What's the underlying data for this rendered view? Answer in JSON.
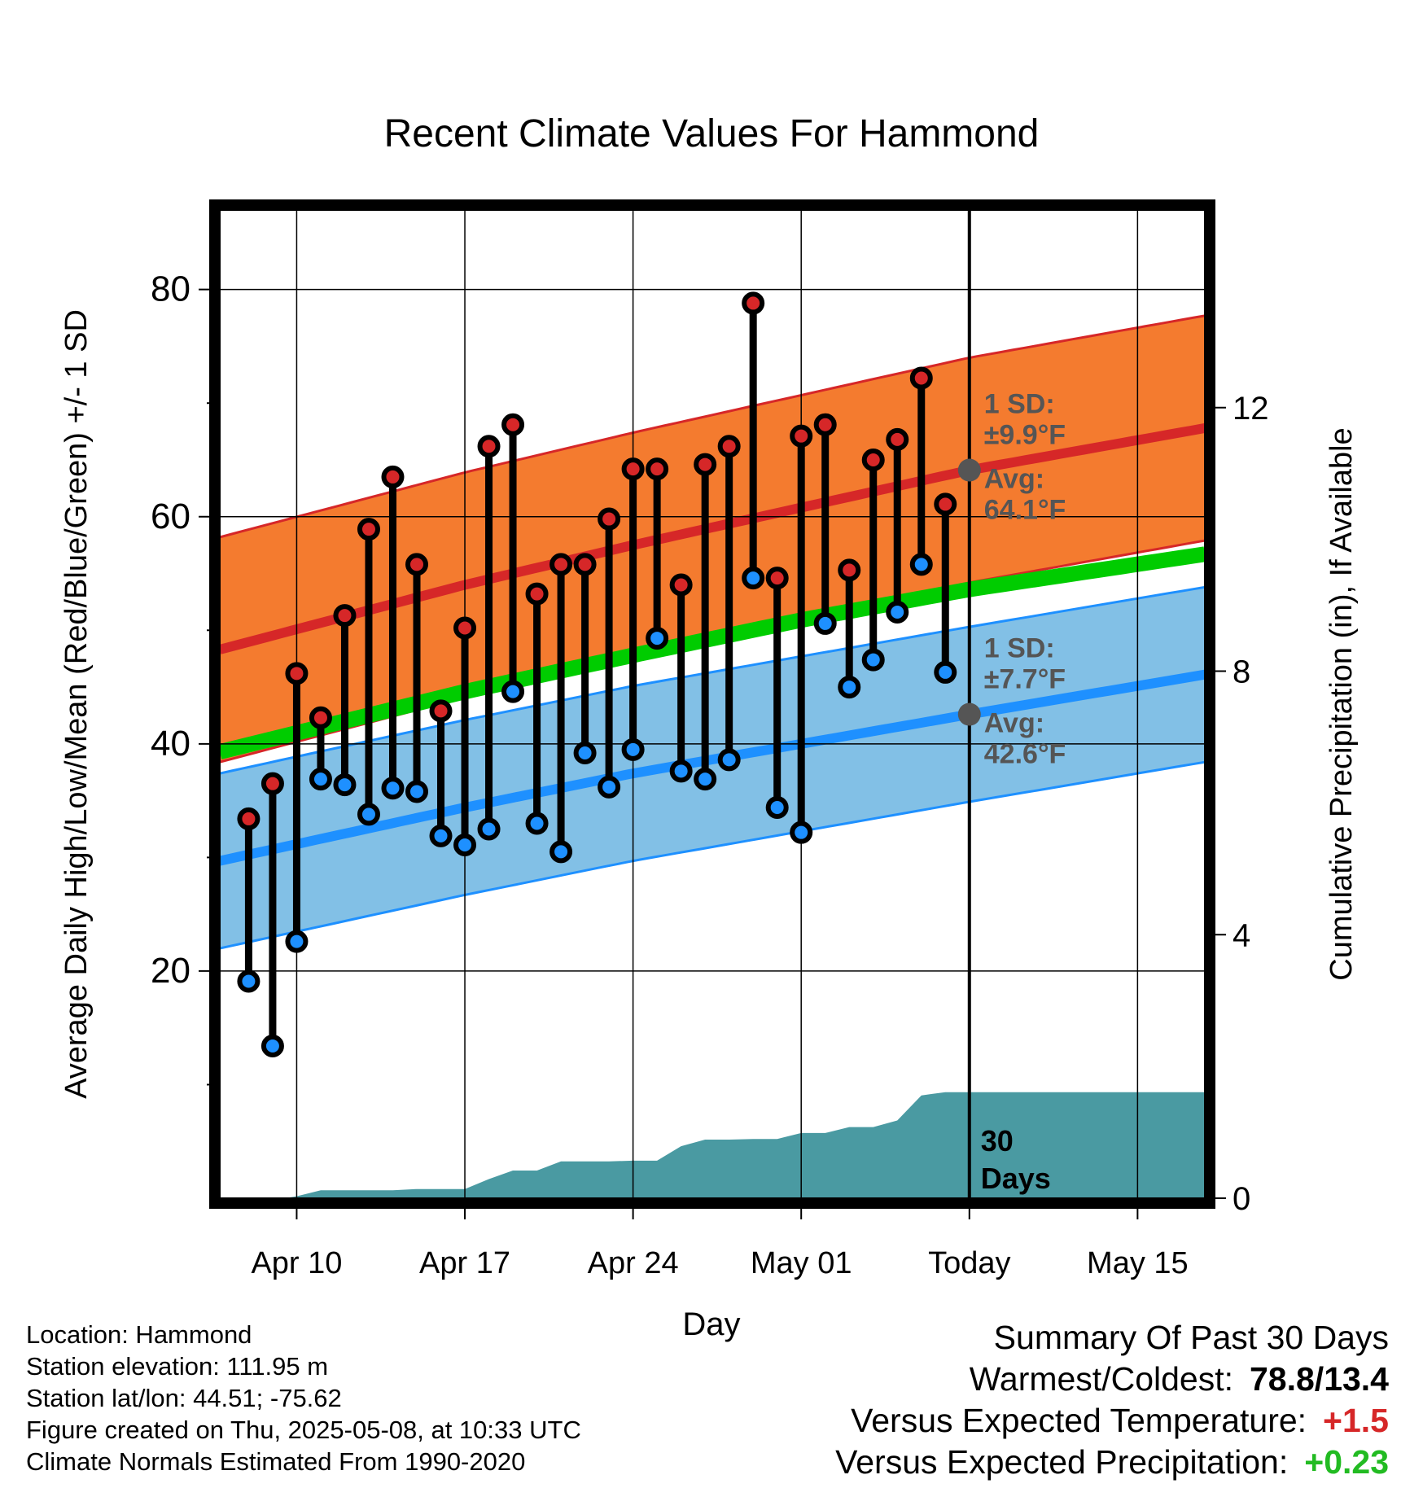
{
  "chart_data": {
    "type": "line",
    "title": "Recent Climate Values For Hammond",
    "xlabel": "Day",
    "ylabel": "Average Daily High/Low/Mean (Red/Blue/Green) +/- 1 SD",
    "y2label": "Cumulative Precipitation (in), If Available",
    "x_tick_labels": [
      "Apr 10",
      "Apr 17",
      "Apr 24",
      "May 01",
      "Today",
      "May 15"
    ],
    "x_tick_days": [
      10,
      17,
      24,
      31,
      38,
      45
    ],
    "x_range_days": [
      6.8,
      47.8
    ],
    "today_day": 38,
    "ylim": [
      0,
      87
    ],
    "y_ticks": [
      20,
      40,
      60,
      80
    ],
    "y_minor_ticks": [
      10,
      30,
      50,
      70
    ],
    "y2lim": [
      0,
      15
    ],
    "y2_ticks": [
      0,
      4,
      8,
      12
    ],
    "grid": true,
    "colors": {
      "high": "#d62728",
      "low": "#1e90ff",
      "mean": "#00cc00",
      "high_band": "#f47b2f",
      "low_band": "#82c0e6",
      "precip": "#4a9aa2",
      "annotation": "#555555"
    },
    "normals": {
      "days": [
        6.8,
        17,
        24,
        31,
        38,
        47.8
      ],
      "high_avg": [
        48.3,
        54.0,
        57.5,
        60.8,
        64.1,
        67.8
      ],
      "high_sd": 9.9,
      "low_avg": [
        29.7,
        34.4,
        37.4,
        40.0,
        42.6,
        46.1
      ],
      "low_sd": 7.7,
      "mean_avg": [
        39.3,
        44.6,
        47.8,
        50.9,
        53.6,
        56.7
      ]
    },
    "daily": {
      "days": [
        8,
        9,
        10,
        11,
        12,
        13,
        14,
        15,
        16,
        17,
        18,
        19,
        20,
        21,
        22,
        23,
        24,
        25,
        26,
        27,
        28,
        29,
        30,
        31,
        32,
        33,
        34,
        35,
        36,
        37
      ],
      "high": [
        33.4,
        36.5,
        46.2,
        42.3,
        51.3,
        58.9,
        63.5,
        55.8,
        42.9,
        50.2,
        66.2,
        68.1,
        53.2,
        55.8,
        55.8,
        59.8,
        64.2,
        64.2,
        54.0,
        64.6,
        66.2,
        78.8,
        54.6,
        67.1,
        68.1,
        55.3,
        65.0,
        66.8,
        72.2,
        61.1
      ],
      "low": [
        19.1,
        13.4,
        22.6,
        36.9,
        36.4,
        33.8,
        36.1,
        35.8,
        31.9,
        31.1,
        32.5,
        44.6,
        33.0,
        30.5,
        39.2,
        36.2,
        39.5,
        49.3,
        37.6,
        36.9,
        38.6,
        54.6,
        34.4,
        32.2,
        50.6,
        45.0,
        47.4,
        51.6,
        55.8,
        46.3
      ],
      "high_marker_colors": [
        "high",
        "high",
        "high",
        "high",
        "high",
        "high",
        "high",
        "high",
        "high",
        "high",
        "high",
        "high",
        "high",
        "high",
        "high",
        "high",
        "high",
        "high",
        "high",
        "high",
        "high",
        "high",
        "high",
        "high",
        "high",
        "high",
        "high",
        "high",
        "high",
        "high"
      ],
      "low_marker_colors": [
        "low",
        "low",
        "low",
        "low",
        "low",
        "low",
        "low",
        "low",
        "low",
        "low",
        "low",
        "low",
        "low",
        "low",
        "low",
        "low",
        "low",
        "low",
        "low",
        "low",
        "low",
        "low",
        "low",
        "low",
        "low",
        "low",
        "low",
        "low",
        "low",
        "low"
      ]
    },
    "precipitation": {
      "days": [
        6.8,
        9.5,
        10,
        11,
        12,
        13,
        14,
        15,
        16,
        17,
        18,
        19,
        20,
        21,
        22,
        23,
        24,
        25,
        26,
        27,
        28,
        29,
        30,
        31,
        32,
        33,
        34,
        35,
        36,
        37,
        38,
        47.8
      ],
      "cumulative": [
        0.0,
        0.0,
        0.03,
        0.12,
        0.12,
        0.12,
        0.12,
        0.14,
        0.14,
        0.14,
        0.29,
        0.42,
        0.42,
        0.56,
        0.56,
        0.56,
        0.57,
        0.57,
        0.79,
        0.89,
        0.89,
        0.9,
        0.9,
        0.99,
        0.99,
        1.08,
        1.08,
        1.18,
        1.56,
        1.61,
        1.61,
        1.61
      ]
    },
    "annotations": {
      "high_sd_label": "1 SD:",
      "high_sd_value": "±9.9°F",
      "high_avg_label": "Avg:",
      "high_avg_value": "64.1°F",
      "low_sd_label": "1 SD:",
      "low_sd_value": "±7.7°F",
      "low_avg_label": "Avg:",
      "low_avg_value": "42.6°F",
      "period_number": "30",
      "period_unit": "Days"
    }
  },
  "info": {
    "location": "Location: Hammond",
    "elevation": "Station elevation: 111.95 m",
    "latlon": "Station lat/lon: 44.51; -75.62",
    "created": "Figure created on Thu, 2025-05-08, at 10:33 UTC",
    "normals": "Climate Normals Estimated From 1990-2020"
  },
  "summary": {
    "title": "Summary Of Past 30 Days",
    "warm_cold_label": "Warmest/Coldest:",
    "warm_cold_value": "78.8/13.4",
    "temp_label": "Versus Expected Temperature:",
    "temp_value": "+1.5",
    "precip_label": "Versus Expected Precipitation:",
    "precip_value": "+0.23"
  }
}
